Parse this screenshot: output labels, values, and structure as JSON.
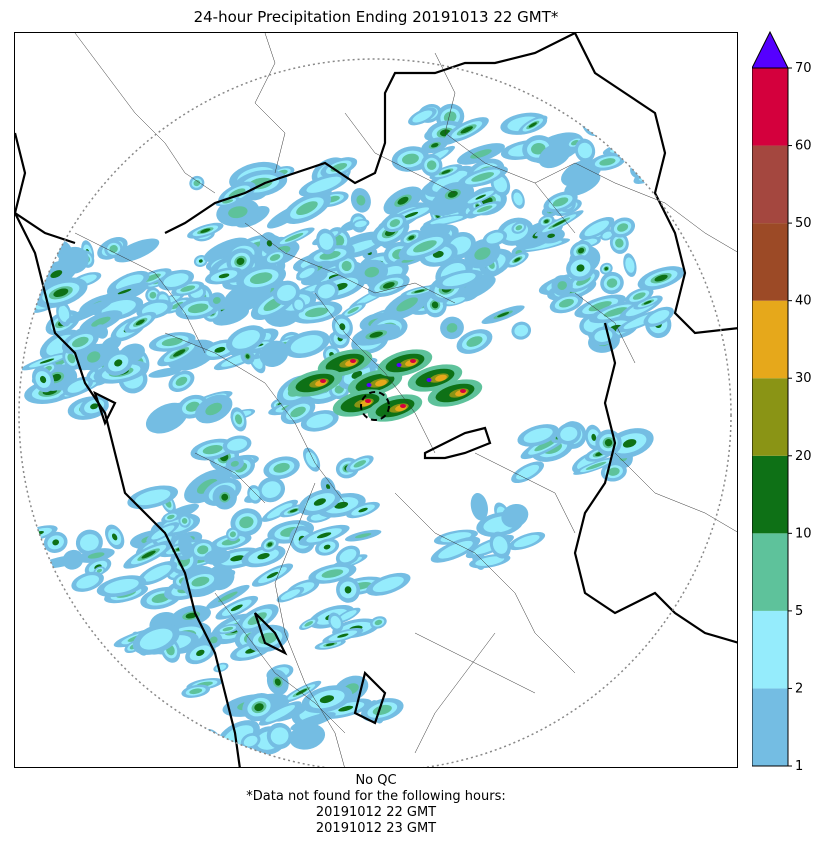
{
  "title": "24-hour Precipitation Ending 20191013 22 GMT*",
  "footer": {
    "qc": "No QC",
    "note": "*Data not found for the following hours:",
    "missing_hours": [
      "20191012 22 GMT",
      "20191012 23 GMT"
    ]
  },
  "chart_data": {
    "type": "heatmap",
    "title": "24-hour Precipitation Ending 20191013 22 GMT*",
    "colorbar": {
      "boundaries": [
        1,
        2,
        5,
        10,
        20,
        30,
        40,
        50,
        60,
        70
      ],
      "tick_labels": [
        "1",
        "2",
        "5",
        "10",
        "20",
        "30",
        "40",
        "50",
        "60",
        "70"
      ],
      "colors": [
        "#74bde3",
        "#95ecfc",
        "#5ec29b",
        "#0e7116",
        "#8a9415",
        "#e6a81b",
        "#9c4a26",
        "#a4473f",
        "#d4003d"
      ],
      "extend_max_color": "#5500ff"
    },
    "grid": false
  },
  "colors": {
    "border": "#000000",
    "range_ring": "#888888",
    "admin_lines": "#333333"
  }
}
